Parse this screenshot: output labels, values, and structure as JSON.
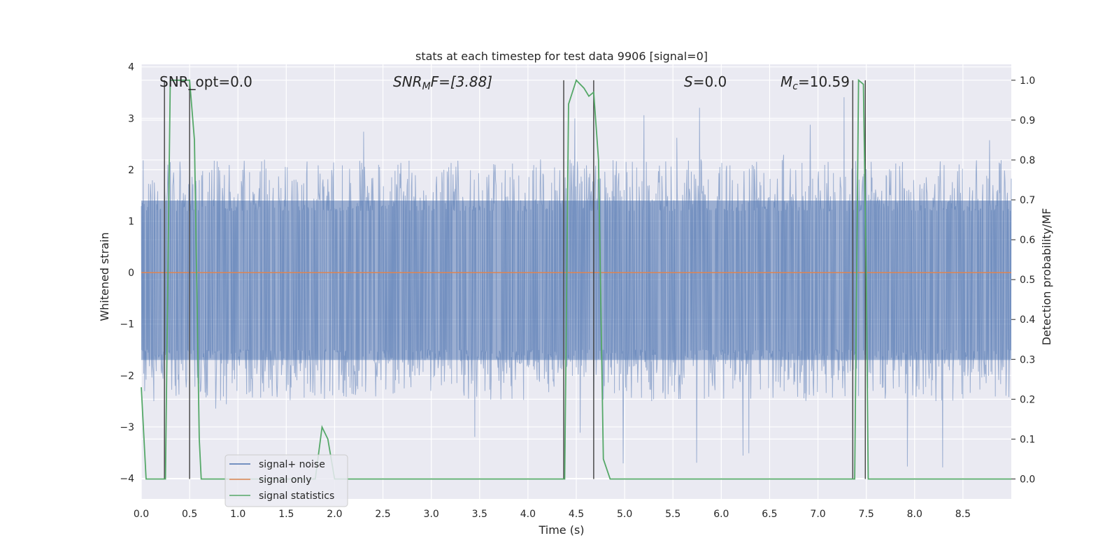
{
  "chart_data": {
    "type": "line",
    "title": "stats at each timestep for test data 9906 [signal=0]",
    "xlabel": "Time (s)",
    "ylabel": "Whitened strain",
    "y2label": "Detection probability/MF",
    "xlim": [
      0,
      9.0
    ],
    "ylim": [
      -4.4,
      4.05
    ],
    "y2lim": [
      -0.05,
      1.04
    ],
    "xticks": [
      0.0,
      0.5,
      1.0,
      1.5,
      2.0,
      2.5,
      3.0,
      3.5,
      4.0,
      4.5,
      5.0,
      5.5,
      6.0,
      6.5,
      7.0,
      7.5,
      8.0,
      8.5
    ],
    "xtick_labels": [
      "0.0",
      "0.5",
      "1.0",
      "1.5",
      "2.0",
      "2.5",
      "3.0",
      "3.5",
      "4.0",
      "4.5",
      "5.0",
      "5.5",
      "6.0",
      "6.5",
      "7.0",
      "7.5",
      "8.0",
      "8.5"
    ],
    "yticks": [
      -4,
      -3,
      -2,
      -1,
      0,
      1,
      2,
      3,
      4
    ],
    "ytick_labels": [
      "−4",
      "−3",
      "−2",
      "−1",
      "0",
      "1",
      "2",
      "3",
      "4"
    ],
    "y2ticks": [
      0.0,
      0.1,
      0.2,
      0.3,
      0.4,
      0.5,
      0.6,
      0.7,
      0.8,
      0.9,
      1.0
    ],
    "y2tick_labels": [
      "0.0",
      "0.1",
      "0.2",
      "0.3",
      "0.4",
      "0.5",
      "0.6",
      "0.7",
      "0.8",
      "0.9",
      "1.0"
    ],
    "grid": true,
    "legend_position": "lower-left",
    "legend": [
      {
        "name": "signal+ noise",
        "color": "#4c72b0"
      },
      {
        "name": "signal only",
        "color": "#dd8452"
      },
      {
        "name": "signal statistics",
        "color": "#55a868"
      }
    ],
    "annotations": {
      "snr_opt": "SNR_opt=0.0",
      "snr_mf_base": "SNR",
      "snr_mf_sub": "M",
      "snr_mf_rest": "F=[3.88]",
      "s_italic": "S",
      "s_rest": "=0.0",
      "mc_base": "M",
      "mc_sub": "c",
      "mc_rest": "=10.59"
    },
    "noise_envelope": {
      "lower_bulk": -1.7,
      "upper_bulk": 1.4,
      "typical_peak": 2.1,
      "max_peak": 3.7,
      "min_peak": -3.9
    },
    "signal_only": {
      "value": 0.0
    },
    "statistics": {
      "x": [
        0.0,
        0.05,
        0.24,
        0.25,
        0.3,
        0.5,
        0.55,
        0.6,
        0.62,
        0.65,
        1.7,
        1.8,
        1.87,
        1.93,
        2.0,
        2.05,
        4.35,
        4.38,
        4.42,
        4.5,
        4.58,
        4.63,
        4.68,
        4.73,
        4.78,
        4.85,
        4.9,
        7.35,
        7.38,
        7.42,
        7.47,
        7.5,
        7.52,
        7.55,
        9.0
      ],
      "y": [
        0.23,
        0.0,
        0.0,
        0.0,
        1.0,
        1.0,
        0.85,
        0.1,
        0.0,
        0.0,
        0.0,
        0.0,
        0.13,
        0.1,
        0.0,
        0.0,
        0.0,
        0.0,
        0.94,
        1.0,
        0.98,
        0.96,
        0.97,
        0.8,
        0.05,
        0.0,
        0.0,
        0.0,
        0.0,
        1.0,
        0.99,
        0.5,
        0.0,
        0.0,
        0.0
      ]
    },
    "markers": [
      {
        "x": 0.24,
        "top": 1.0,
        "bottom": 0.0
      },
      {
        "x": 0.5,
        "top": 1.0,
        "bottom": 0.0
      },
      {
        "x": 4.37,
        "top": 1.0,
        "bottom": 0.0
      },
      {
        "x": 4.68,
        "top": 1.0,
        "bottom": 0.0
      },
      {
        "x": 7.36,
        "top": 1.0,
        "bottom": 0.0
      },
      {
        "x": 7.49,
        "top": 1.0,
        "bottom": 0.0
      }
    ],
    "colors": {
      "plot_bg": "#eaeaf2",
      "grid": "#ffffff",
      "noise": "#4c72b0",
      "signal": "#dd8452",
      "stats": "#55a868",
      "marker": "#4a4a4a"
    }
  }
}
